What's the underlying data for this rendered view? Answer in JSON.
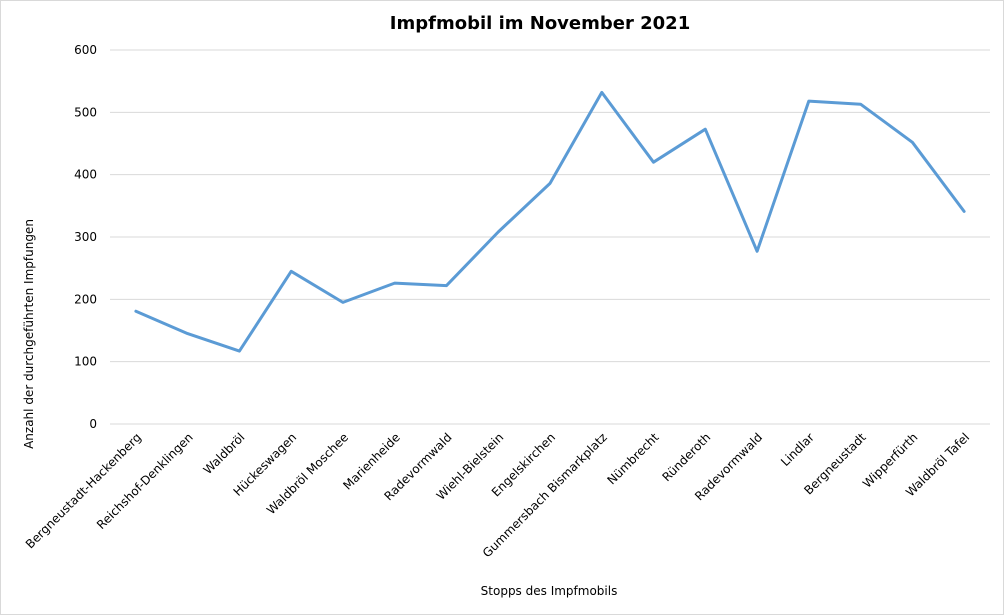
{
  "chart_data": {
    "type": "line",
    "title": "Impfmobil im November 2021",
    "xlabel": "Stopps des Impfmobils",
    "ylabel": "Anzahl der durchgeführten Impfungen",
    "ylim": [
      0,
      600
    ],
    "yticks": [
      0,
      100,
      200,
      300,
      400,
      500,
      600
    ],
    "grid": true,
    "categories": [
      "Bergneustadt-Hackenberg",
      "Reichshof-Denklingen",
      "Waldbröl",
      "Hückeswagen",
      "Waldbröl Moschee",
      "Marienheide",
      "Radevormwald",
      "Wiehl-Bielstein",
      "Engelskirchen",
      "Gummersbach Bismarkplatz",
      "Nümbrecht",
      "Ründeroth",
      "Radevormwald",
      "Lindlar",
      "Bergneustadt",
      "Wipperfürth",
      "Waldbröl Tafel"
    ],
    "series": [
      {
        "values": [
          181,
          145,
          117,
          245,
          195,
          226,
          222,
          308,
          386,
          532,
          420,
          473,
          277,
          518,
          513,
          452,
          341
        ],
        "color": "#5b9bd5"
      }
    ]
  }
}
